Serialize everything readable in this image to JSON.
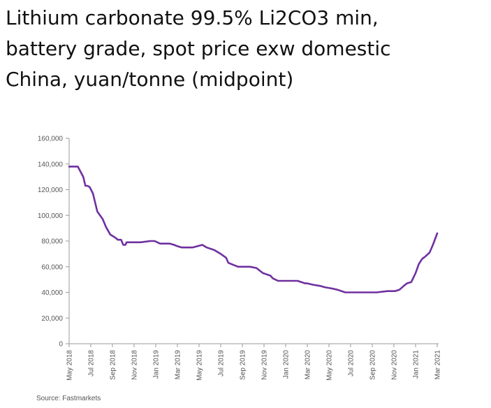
{
  "title_lines": [
    "Lithium carbonate 99.5% Li2CO3 min,",
    "battery grade, spot price exw domestic",
    "China, yuan/tonne (midpoint)"
  ],
  "source": "Source: Fastmarkets",
  "colors": {
    "line": "#7030a0",
    "axis": "#999999",
    "tick_text": "#555555"
  },
  "chart_data": {
    "type": "line",
    "title": "Lithium carbonate 99.5% Li2CO3 min, battery grade, spot price exw domestic China, yuan/tonne (midpoint)",
    "xlabel": "",
    "ylabel": "",
    "ylim": [
      0,
      160000
    ],
    "yticks": [
      0,
      20000,
      40000,
      60000,
      80000,
      100000,
      120000,
      140000,
      160000
    ],
    "ytick_labels": [
      "0",
      "20,000",
      "40,000",
      "60,000",
      "80,000",
      "100,000",
      "120,000",
      "140,000",
      "160,000"
    ],
    "xlim": [
      0,
      34
    ],
    "xticks": [
      0,
      2,
      4,
      6,
      8,
      10,
      12,
      14,
      16,
      18,
      20,
      22,
      24,
      26,
      28,
      30,
      32,
      34
    ],
    "xtick_labels": [
      "May 2018",
      "Jul 2018",
      "Sep 2018",
      "Nov 2018",
      "Jan 2019",
      "Mar 2019",
      "May 2019",
      "Jul 2019",
      "Sep 2019",
      "Nov 2019",
      "Jan 2020",
      "Mar 2020",
      "May 2020",
      "Jul 2020",
      "Sep 2020",
      "Nov 2020",
      "Jan 2021",
      "Mar 2021"
    ],
    "grid": false,
    "series": [
      {
        "x": [
          0,
          0.8,
          1.3,
          1.5,
          1.7,
          1.9,
          2.2,
          2.6,
          3.1,
          3.4,
          3.8,
          4.2,
          4.5,
          4.8,
          5.0,
          5.2,
          5.3,
          5.5,
          5.8,
          6.6,
          7.5,
          7.9,
          8.4,
          8.9,
          9.3,
          9.7,
          10.0,
          10.4,
          10.8,
          11.4,
          12.3,
          12.7,
          13.4,
          14.0,
          14.5,
          14.7,
          15.0,
          15.3,
          15.6,
          15.9,
          16.3,
          16.7,
          17.3,
          17.9,
          18.6,
          18.8,
          19.3,
          19.6,
          20.0,
          20.4,
          21.1,
          21.8,
          22.0,
          22.5,
          23.2,
          23.6,
          24.3,
          24.8,
          25.5,
          26.1,
          26.5,
          27.1,
          27.4,
          27.6,
          28.4,
          29.4,
          30.1,
          30.5,
          30.9,
          31.2,
          31.6,
          32.0,
          32.3,
          32.6,
          32.9,
          33.3,
          33.6,
          34.0
        ],
        "y": [
          138000,
          138000,
          130000,
          123000,
          123000,
          122000,
          117000,
          103000,
          97000,
          91000,
          85000,
          83000,
          81000,
          81000,
          77000,
          77000,
          79000,
          79000,
          79000,
          79000,
          80000,
          80000,
          78000,
          78000,
          78000,
          77000,
          76000,
          75000,
          75000,
          75000,
          77000,
          75000,
          73000,
          70000,
          67000,
          63000,
          62000,
          61000,
          60000,
          60000,
          60000,
          60000,
          59000,
          55000,
          53000,
          51000,
          49000,
          49000,
          49000,
          49000,
          49000,
          47000,
          47000,
          46000,
          45000,
          44000,
          43000,
          42000,
          40000,
          40000,
          40000,
          40000,
          40000,
          40000,
          40000,
          41000,
          41000,
          42000,
          45000,
          47000,
          48000,
          55000,
          62000,
          66000,
          68000,
          71000,
          77000,
          86000
        ]
      }
    ]
  }
}
